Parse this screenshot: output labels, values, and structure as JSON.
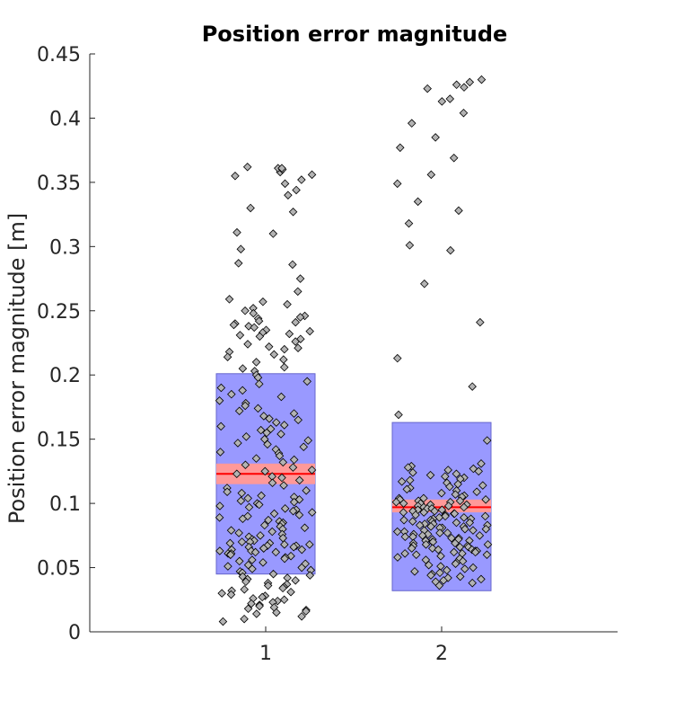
{
  "chart_data": {
    "type": "scatter",
    "title": "Position error magnitude",
    "ylabel": "Position error magnitude [m]",
    "xlabel": "",
    "x_ticks": [
      "1",
      "2"
    ],
    "xlim": [
      0,
      3
    ],
    "ylim": [
      0,
      0.45
    ],
    "y_ticks": [
      0,
      0.05,
      0.1,
      0.15,
      0.2,
      0.25,
      0.3,
      0.35,
      0.4,
      0.45
    ],
    "y_tick_labels": [
      "0",
      "0.05",
      "0.1",
      "0.15",
      "0.2",
      "0.25",
      "0.3",
      "0.35",
      "0.4",
      "0.45"
    ],
    "grid": false,
    "colors": {
      "box_fill": "#9999ff",
      "box_edge": "#6666cc",
      "ci_fill": "#ff9999",
      "mean_line": "#ff0000",
      "point_fill": "#b3b3b3",
      "point_edge": "#000000"
    },
    "groups": [
      {
        "x": 1,
        "mean": 0.123,
        "ci": [
          0.115,
          0.131
        ],
        "box": [
          0.045,
          0.201
        ],
        "points": [
          0.358,
          0.362,
          0.361,
          0.356,
          0.36,
          0.361,
          0.355,
          0.352,
          0.349,
          0.344,
          0.34,
          0.33,
          0.327,
          0.311,
          0.31,
          0.298,
          0.287,
          0.286,
          0.275,
          0.265,
          0.259,
          0.257,
          0.255,
          0.252,
          0.25,
          0.248,
          0.246,
          0.245,
          0.244,
          0.242,
          0.241,
          0.24,
          0.239,
          0.238,
          0.237,
          0.235,
          0.234,
          0.233,
          0.232,
          0.231,
          0.23,
          0.228,
          0.226,
          0.224,
          0.222,
          0.221,
          0.22,
          0.218,
          0.216,
          0.214,
          0.212,
          0.21,
          0.206,
          0.205,
          0.203,
          0.2,
          0.198,
          0.195,
          0.193,
          0.19,
          0.188,
          0.185,
          0.183,
          0.18,
          0.178,
          0.176,
          0.174,
          0.172,
          0.17,
          0.168,
          0.166,
          0.165,
          0.163,
          0.161,
          0.16,
          0.158,
          0.157,
          0.155,
          0.154,
          0.152,
          0.15,
          0.149,
          0.147,
          0.146,
          0.144,
          0.142,
          0.14,
          0.139,
          0.137,
          0.135,
          0.134,
          0.132,
          0.13,
          0.128,
          0.126,
          0.125,
          0.123,
          0.121,
          0.12,
          0.118,
          0.116,
          0.114,
          0.112,
          0.11,
          0.109,
          0.108,
          0.106,
          0.105,
          0.104,
          0.103,
          0.102,
          0.101,
          0.1,
          0.099,
          0.098,
          0.097,
          0.096,
          0.095,
          0.094,
          0.093,
          0.092,
          0.091,
          0.09,
          0.089,
          0.088,
          0.087,
          0.086,
          0.085,
          0.084,
          0.083,
          0.082,
          0.081,
          0.08,
          0.079,
          0.078,
          0.077,
          0.076,
          0.075,
          0.074,
          0.073,
          0.072,
          0.071,
          0.07,
          0.07,
          0.069,
          0.069,
          0.068,
          0.068,
          0.067,
          0.067,
          0.066,
          0.066,
          0.065,
          0.065,
          0.064,
          0.064,
          0.063,
          0.063,
          0.062,
          0.062,
          0.061,
          0.061,
          0.06,
          0.06,
          0.059,
          0.058,
          0.057,
          0.056,
          0.055,
          0.054,
          0.053,
          0.052,
          0.051,
          0.05,
          0.049,
          0.048,
          0.047,
          0.046,
          0.045,
          0.044,
          0.043,
          0.042,
          0.041,
          0.04,
          0.039,
          0.038,
          0.037,
          0.036,
          0.035,
          0.034,
          0.033,
          0.032,
          0.031,
          0.03,
          0.029,
          0.028,
          0.027,
          0.026,
          0.025,
          0.024,
          0.023,
          0.022,
          0.021,
          0.02,
          0.019,
          0.018,
          0.017,
          0.016,
          0.015,
          0.014,
          0.012,
          0.01,
          0.008
        ]
      },
      {
        "x": 2,
        "mean": 0.097,
        "ci": [
          0.093,
          0.103
        ],
        "box": [
          0.032,
          0.163
        ],
        "points": [
          0.43,
          0.428,
          0.426,
          0.424,
          0.423,
          0.415,
          0.413,
          0.404,
          0.396,
          0.385,
          0.377,
          0.369,
          0.356,
          0.349,
          0.335,
          0.328,
          0.318,
          0.301,
          0.297,
          0.271,
          0.241,
          0.213,
          0.191,
          0.169,
          0.149,
          0.131,
          0.129,
          0.128,
          0.127,
          0.126,
          0.125,
          0.124,
          0.123,
          0.122,
          0.121,
          0.12,
          0.119,
          0.118,
          0.117,
          0.116,
          0.115,
          0.114,
          0.113,
          0.112,
          0.111,
          0.11,
          0.109,
          0.108,
          0.107,
          0.106,
          0.105,
          0.104,
          0.104,
          0.103,
          0.103,
          0.102,
          0.102,
          0.101,
          0.101,
          0.1,
          0.1,
          0.099,
          0.099,
          0.098,
          0.098,
          0.097,
          0.097,
          0.096,
          0.096,
          0.095,
          0.095,
          0.094,
          0.094,
          0.093,
          0.093,
          0.092,
          0.092,
          0.091,
          0.091,
          0.09,
          0.09,
          0.089,
          0.089,
          0.088,
          0.088,
          0.087,
          0.087,
          0.086,
          0.086,
          0.085,
          0.085,
          0.084,
          0.084,
          0.083,
          0.083,
          0.082,
          0.082,
          0.081,
          0.081,
          0.08,
          0.08,
          0.079,
          0.079,
          0.078,
          0.078,
          0.077,
          0.077,
          0.076,
          0.076,
          0.075,
          0.075,
          0.074,
          0.074,
          0.073,
          0.073,
          0.072,
          0.072,
          0.071,
          0.071,
          0.07,
          0.07,
          0.069,
          0.069,
          0.068,
          0.068,
          0.067,
          0.067,
          0.066,
          0.066,
          0.065,
          0.065,
          0.064,
          0.064,
          0.063,
          0.063,
          0.062,
          0.062,
          0.061,
          0.061,
          0.06,
          0.06,
          0.059,
          0.058,
          0.057,
          0.056,
          0.055,
          0.054,
          0.053,
          0.052,
          0.051,
          0.05,
          0.049,
          0.048,
          0.047,
          0.046,
          0.045,
          0.044,
          0.043,
          0.042,
          0.041,
          0.04,
          0.039,
          0.038,
          0.036
        ]
      }
    ]
  }
}
